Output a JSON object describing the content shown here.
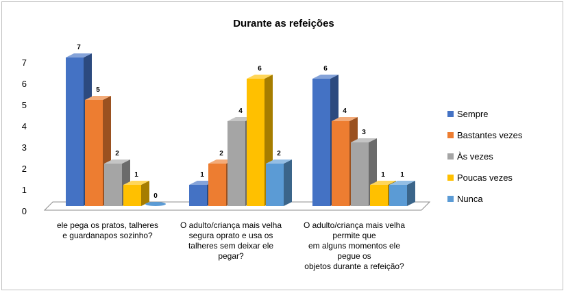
{
  "chart_data": {
    "type": "bar",
    "title": "Durante as refeições",
    "xlabel": "",
    "ylabel": "",
    "ylim": [
      0,
      7
    ],
    "yticks": [
      "0",
      "1",
      "2",
      "3",
      "4",
      "5",
      "6",
      "7"
    ],
    "categories": [
      [
        "ele pega os pratos, talheres",
        "e guardanapos sozinho?"
      ],
      [
        "O adulto/criança mais velha",
        "segura oprato e usa os",
        "talheres sem deixar ele",
        "pegar?"
      ],
      [
        "O adulto/criança mais velha",
        "permite que",
        "em alguns momentos ele",
        "pegue os",
        "objetos durante a refeição?"
      ]
    ],
    "series": [
      {
        "name": "Sempre",
        "values": [
          7,
          1,
          6
        ],
        "color": "#4472C4"
      },
      {
        "name": "Bastantes vezes",
        "values": [
          5,
          2,
          4
        ],
        "color": "#ED7D31"
      },
      {
        "name": "Às vezes",
        "values": [
          2,
          4,
          3
        ],
        "color": "#A5A5A5"
      },
      {
        "name": "Poucas vezes",
        "values": [
          1,
          6,
          1
        ],
        "color": "#FFC000"
      },
      {
        "name": "Nunca",
        "values": [
          0,
          2,
          1
        ],
        "color": "#5B9BD5"
      }
    ],
    "grid": false,
    "legend_position": "right"
  }
}
